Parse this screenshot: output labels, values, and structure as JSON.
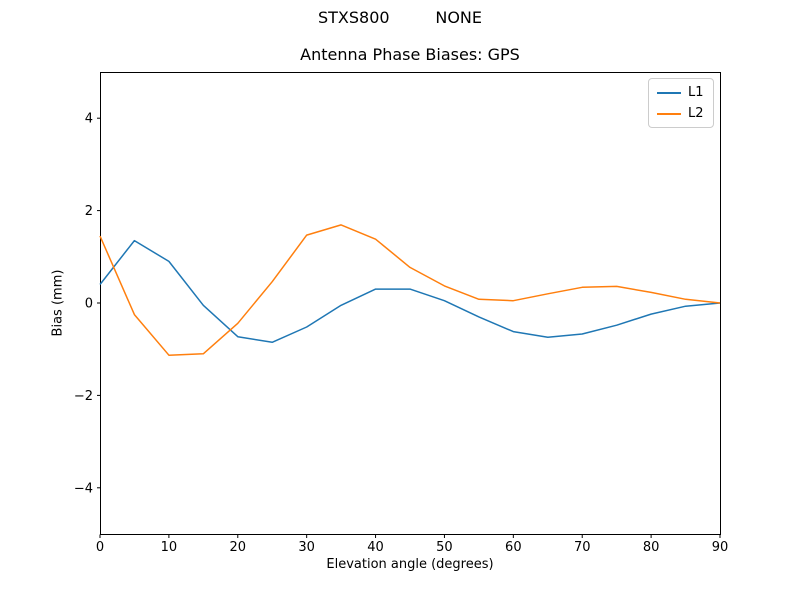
{
  "figure": {
    "suptitle": "STXS800         NONE"
  },
  "chart_data": {
    "type": "line",
    "title": "Antenna Phase Biases: GPS",
    "xlabel": "Elevation angle (degrees)",
    "ylabel": "Bias (mm)",
    "xlim": [
      0,
      90
    ],
    "ylim": [
      -5,
      5
    ],
    "xticks": [
      0,
      10,
      20,
      30,
      40,
      50,
      60,
      70,
      80,
      90
    ],
    "xtick_labels": [
      "0",
      "10",
      "20",
      "30",
      "40",
      "50",
      "60",
      "70",
      "80",
      "90"
    ],
    "yticks": [
      -4,
      -2,
      0,
      2,
      4
    ],
    "ytick_labels": [
      "−4",
      "−2",
      "0",
      "2",
      "4"
    ],
    "grid": false,
    "legend_position": "upper right",
    "x": [
      0,
      5,
      10,
      15,
      20,
      25,
      30,
      35,
      40,
      45,
      50,
      55,
      60,
      65,
      70,
      75,
      80,
      85,
      90
    ],
    "series": [
      {
        "name": "L1",
        "color": "#1f77b4",
        "values": [
          0.4,
          1.35,
          0.9,
          -0.05,
          -0.73,
          -0.85,
          -0.52,
          -0.05,
          0.3,
          0.3,
          0.05,
          -0.3,
          -0.62,
          -0.74,
          -0.67,
          -0.48,
          -0.24,
          -0.07,
          0.0
        ]
      },
      {
        "name": "L2",
        "color": "#ff7f0e",
        "values": [
          1.45,
          -0.25,
          -1.13,
          -1.1,
          -0.44,
          0.46,
          1.47,
          1.69,
          1.38,
          0.77,
          0.37,
          0.08,
          0.05,
          0.2,
          0.34,
          0.36,
          0.23,
          0.08,
          0.0
        ]
      }
    ]
  }
}
